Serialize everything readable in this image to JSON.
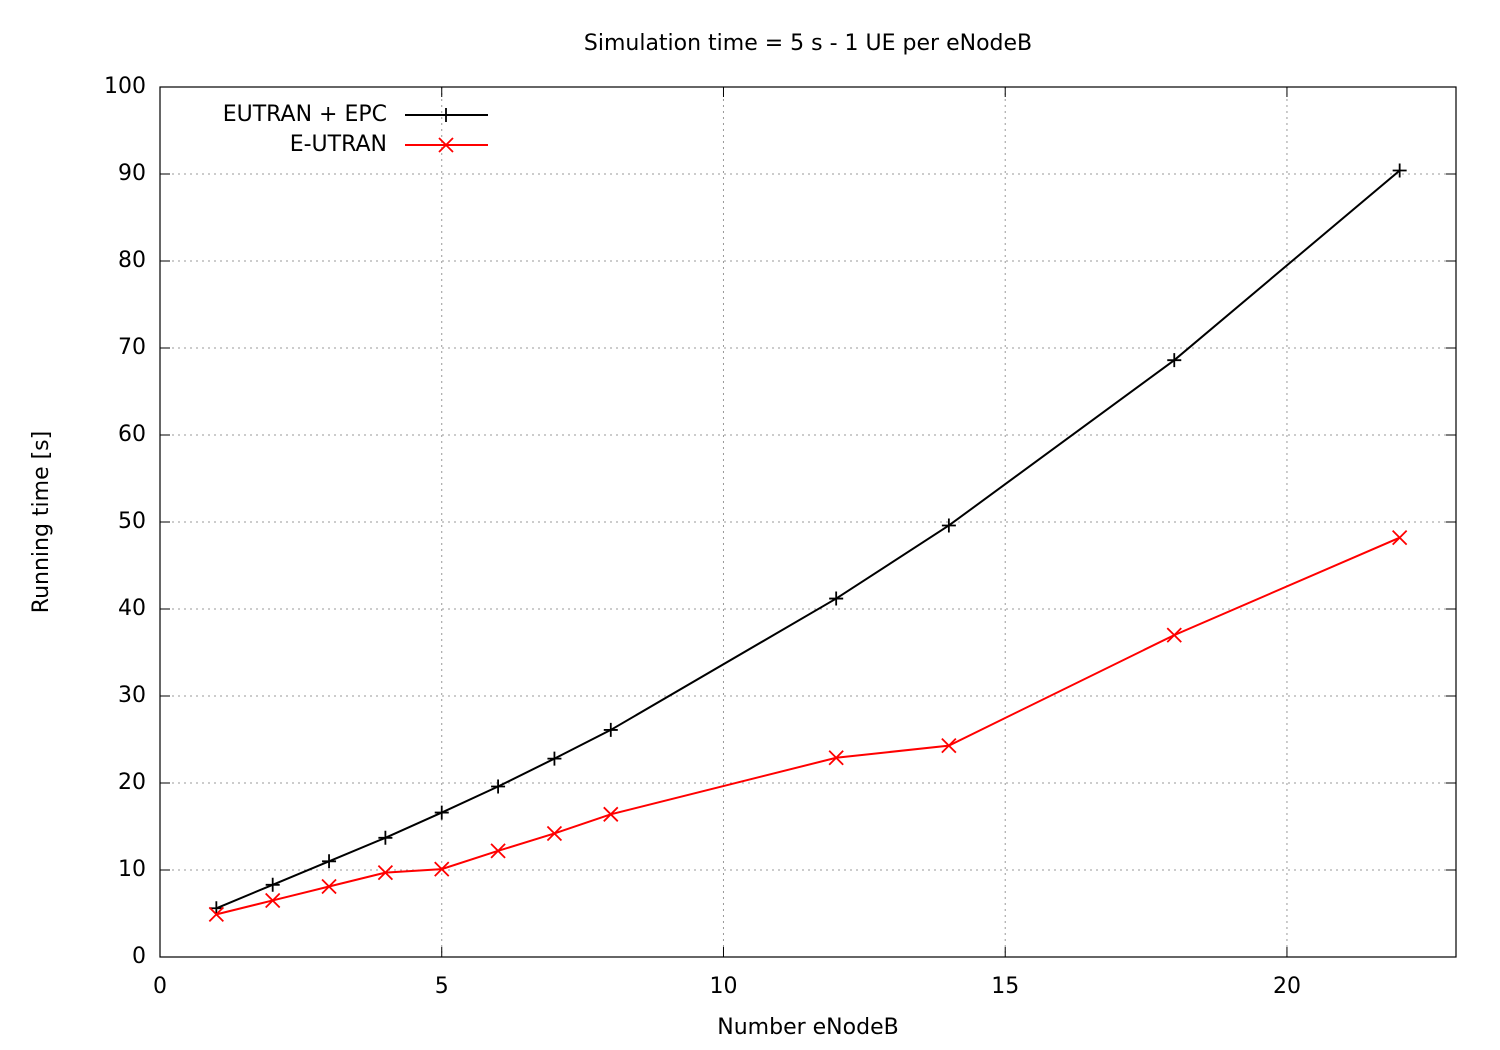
{
  "chart_data": {
    "type": "line",
    "title": "Simulation time = 5 s - 1 UE per eNodeB",
    "x_label": "Number  eNodeB",
    "y_label": "Running time [s]",
    "x": [
      1,
      2,
      3,
      4,
      5,
      6,
      7,
      8,
      12,
      14,
      18,
      22
    ],
    "series": [
      {
        "name": "EUTRAN + EPC",
        "color": "#000000",
        "marker": "plus",
        "values": [
          5.6,
          8.3,
          11.0,
          13.7,
          16.6,
          19.6,
          22.8,
          26.1,
          41.2,
          49.6,
          68.6,
          90.4
        ]
      },
      {
        "name": "E-UTRAN",
        "color": "#ff0000",
        "marker": "cross",
        "values": [
          4.9,
          6.5,
          8.1,
          9.7,
          10.1,
          12.2,
          14.2,
          16.4,
          22.9,
          24.3,
          37.0,
          48.2
        ]
      }
    ],
    "xlim": [
      0,
      23
    ],
    "xticks": [
      0,
      5,
      10,
      15,
      20
    ],
    "ylim": [
      0,
      100
    ],
    "yticks": [
      0,
      10,
      20,
      30,
      40,
      50,
      60,
      70,
      80,
      90,
      100
    ],
    "grid": true,
    "legend": "top-left"
  }
}
